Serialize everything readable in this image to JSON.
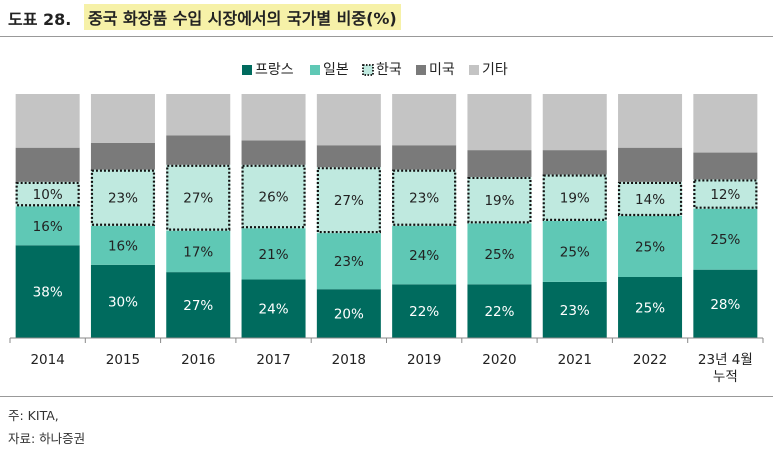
{
  "header": {
    "label": "도표 28.",
    "title": "중국 화장품 수입 시장에서의 국가별 비중(%)"
  },
  "footer": {
    "source": "주: KITA,",
    "org": "자료: 하나증권"
  },
  "colors": {
    "france": "#006b5e",
    "japan": "#5fc8b5",
    "korea": "#bfe9df",
    "usa": "#7a7a7a",
    "other": "#c4c4c4"
  },
  "chart_data": {
    "type": "bar",
    "stacked": true,
    "percent": true,
    "categories": [
      "2014",
      "2015",
      "2016",
      "2017",
      "2018",
      "2019",
      "2020",
      "2021",
      "2022",
      "23년 4월|누적"
    ],
    "legend_position": "top",
    "series": [
      {
        "name": "프랑스",
        "key": "france",
        "values": [
          38,
          30,
          27,
          24,
          20,
          22,
          22,
          23,
          25,
          28
        ],
        "labeled": true
      },
      {
        "name": "일본",
        "key": "japan",
        "values": [
          16,
          16,
          17,
          21,
          23,
          24,
          25,
          25,
          25,
          25
        ],
        "labeled": true
      },
      {
        "name": "한국",
        "key": "korea",
        "values": [
          10,
          23,
          27,
          26,
          27,
          23,
          19,
          19,
          14,
          12
        ],
        "labeled": true,
        "dotted_border": true
      },
      {
        "name": "미국",
        "key": "usa",
        "values": [
          14,
          11,
          12,
          10,
          9,
          10,
          11,
          10,
          14,
          11
        ],
        "labeled": false
      },
      {
        "name": "기타",
        "key": "other",
        "values": [
          22,
          20,
          17,
          19,
          21,
          21,
          23,
          23,
          22,
          24
        ],
        "labeled": false
      }
    ],
    "value_labels": [
      "38%",
      "30%",
      "27%",
      "24%",
      "20%",
      "22%",
      "22%",
      "23%",
      "25%",
      "28%",
      "16%",
      "16%",
      "17%",
      "21%",
      "23%",
      "24%",
      "25%",
      "25%",
      "25%",
      "25%",
      "10%",
      "23%",
      "27%",
      "26%",
      "27%",
      "23%",
      "19%",
      "19%",
      "14%",
      "12%"
    ],
    "ylim": [
      0,
      100
    ]
  }
}
